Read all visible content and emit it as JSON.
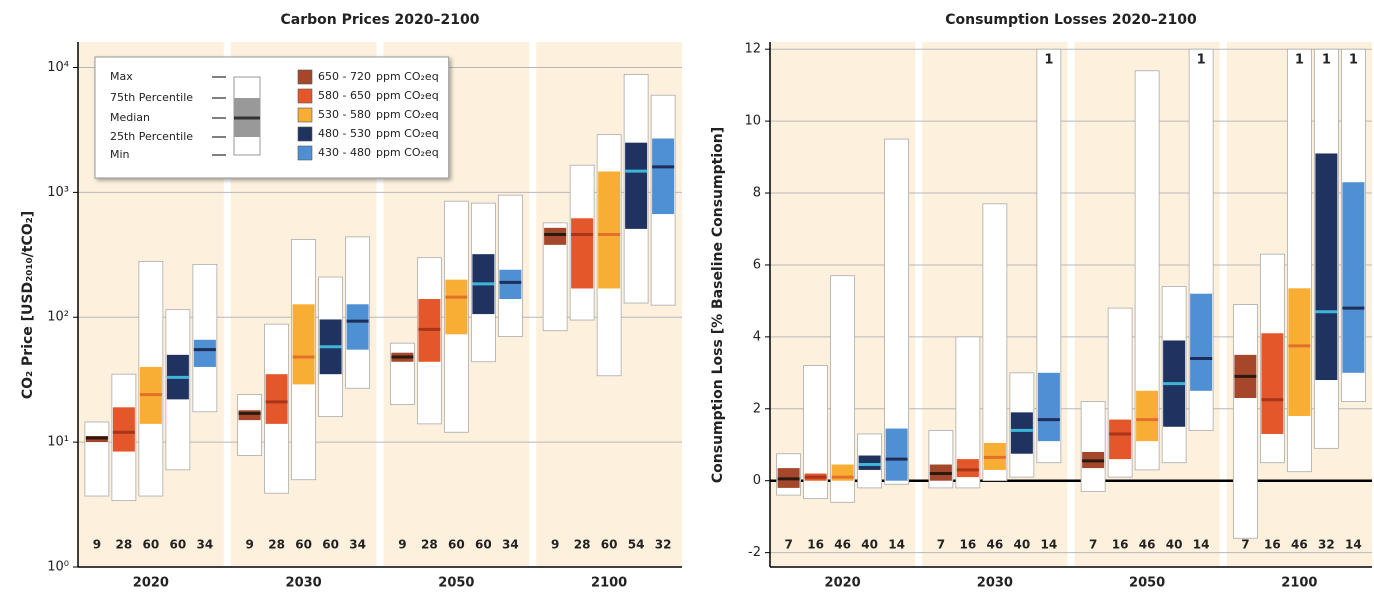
{
  "chart_data": [
    {
      "type": "box",
      "title": "Carbon Prices 2020–2100",
      "y_label": "CO₂ Price [USD₂₀₁₀/tCO₂]",
      "log_scale": true,
      "categories": [
        "2020",
        "2030",
        "2050",
        "2100"
      ],
      "ylim": [
        1,
        16000
      ],
      "yticks": [
        {
          "value": 1,
          "label": "10⁰"
        },
        {
          "value": 10,
          "label": "10¹"
        },
        {
          "value": 100,
          "label": "10²"
        },
        {
          "value": 1000,
          "label": "10³"
        },
        {
          "value": 10000,
          "label": "10⁴"
        }
      ],
      "grid": true,
      "legend_box_labels": [
        "Max",
        "75th Percentile",
        "Median",
        "25th Percentile",
        "Min"
      ],
      "legend_unit": "ppm CO₂eq",
      "series": [
        {
          "name": "650 - 720",
          "color": "#a4472a",
          "median_color": "#2a1a10",
          "min": [
            3.7,
            7.8,
            20,
            78
          ],
          "q1": [
            10,
            15,
            44,
            380
          ],
          "median": [
            10.8,
            17,
            48,
            460
          ],
          "q3": [
            11.2,
            18,
            52,
            520
          ],
          "max": [
            14.5,
            24,
            62,
            570
          ],
          "n": [
            9,
            9,
            9,
            9
          ]
        },
        {
          "name": "580 - 650",
          "color": "#e4572a",
          "median_color": "#a8341a",
          "min": [
            3.4,
            3.9,
            14,
            95
          ],
          "q1": [
            8.4,
            14,
            44,
            170
          ],
          "median": [
            12,
            21,
            80,
            460
          ],
          "q3": [
            19,
            35,
            140,
            620
          ],
          "max": [
            35,
            88,
            300,
            1650
          ],
          "n": [
            28,
            28,
            28,
            28
          ]
        },
        {
          "name": "530 - 580",
          "color": "#f8ae35",
          "median_color": "#e2702a",
          "min": [
            3.7,
            5,
            12,
            34
          ],
          "q1": [
            14,
            29,
            73,
            170
          ],
          "median": [
            24,
            48,
            145,
            460
          ],
          "q3": [
            40,
            127,
            200,
            1470
          ],
          "max": [
            280,
            420,
            850,
            2900
          ],
          "n": [
            60,
            60,
            60,
            60
          ]
        },
        {
          "name": "480 - 530",
          "color": "#1f3260",
          "median_color": "#3fb6d8",
          "min": [
            6,
            16,
            44,
            130
          ],
          "q1": [
            22,
            35,
            106,
            510
          ],
          "median": [
            33,
            58,
            185,
            1480
          ],
          "q3": [
            50,
            96,
            320,
            2500
          ],
          "max": [
            115,
            210,
            820,
            8800
          ],
          "n": [
            60,
            60,
            60,
            54
          ]
        },
        {
          "name": "430 - 480",
          "color": "#4f8fd4",
          "median_color": "#1c2f5a",
          "min": [
            17.5,
            27,
            70,
            125
          ],
          "q1": [
            40,
            55,
            140,
            670
          ],
          "median": [
            55,
            93,
            190,
            1600
          ],
          "q3": [
            66,
            127,
            240,
            2700
          ],
          "max": [
            265,
            440,
            950,
            6000
          ],
          "n": [
            34,
            34,
            34,
            32
          ]
        }
      ]
    },
    {
      "type": "box",
      "title": "Consumption Losses 2020–2100",
      "y_label": "Consumption Loss [% Baseline Consumption]",
      "log_scale": false,
      "categories": [
        "2020",
        "2030",
        "2050",
        "2100"
      ],
      "ylim": [
        -2.4,
        12.2
      ],
      "yticks": [
        -2,
        0,
        2,
        4,
        6,
        8,
        10,
        12
      ],
      "grid": true,
      "series": [
        {
          "color": "#a4472a",
          "median_color": "#2a1a10",
          "min": [
            -0.4,
            -0.2,
            -0.3,
            -1.6
          ],
          "q1": [
            -0.2,
            0,
            0.35,
            2.3
          ],
          "median": [
            0.05,
            0.2,
            0.55,
            2.9
          ],
          "q3": [
            0.35,
            0.45,
            0.8,
            3.5
          ],
          "max": [
            0.75,
            1.4,
            2.2,
            4.9
          ],
          "n": [
            7,
            7,
            7,
            7
          ]
        },
        {
          "color": "#e4572a",
          "median_color": "#a8341a",
          "min": [
            -0.5,
            -0.2,
            0.1,
            0.5
          ],
          "q1": [
            0,
            0.1,
            0.6,
            1.3
          ],
          "median": [
            0.1,
            0.3,
            1.3,
            2.25
          ],
          "q3": [
            0.2,
            0.6,
            1.7,
            4.1
          ],
          "max": [
            3.2,
            4,
            4.8,
            6.3
          ],
          "n": [
            16,
            16,
            16,
            16
          ]
        },
        {
          "color": "#f8ae35",
          "median_color": "#e2702a",
          "min": [
            -0.6,
            0,
            0.3,
            0.25
          ],
          "q1": [
            0,
            0.3,
            1.1,
            1.8
          ],
          "median": [
            0.1,
            0.65,
            1.7,
            3.75
          ],
          "q3": [
            0.45,
            1.05,
            2.5,
            5.35
          ],
          "max": [
            5.7,
            7.7,
            11.4,
            12
          ],
          "n": [
            46,
            46,
            46,
            46
          ],
          "above_labels": [
            null,
            null,
            null,
            "1"
          ]
        },
        {
          "color": "#1f3260",
          "median_color": "#3fb6d8",
          "min": [
            -0.2,
            0.1,
            0.5,
            0.9
          ],
          "q1": [
            0.3,
            0.75,
            1.5,
            2.8
          ],
          "median": [
            0.45,
            1.4,
            2.7,
            4.7
          ],
          "q3": [
            0.7,
            1.9,
            3.9,
            9.1
          ],
          "max": [
            1.3,
            3,
            5.4,
            12
          ],
          "n": [
            40,
            40,
            40,
            32
          ],
          "above_labels": [
            null,
            null,
            null,
            "1"
          ]
        },
        {
          "color": "#4f8fd4",
          "median_color": "#1c2f5a",
          "min": [
            -0.1,
            0.5,
            1.4,
            2.2
          ],
          "q1": [
            0,
            1.1,
            2.5,
            3
          ],
          "median": [
            0.6,
            1.7,
            3.4,
            4.8
          ],
          "q3": [
            1.45,
            3,
            5.2,
            8.3
          ],
          "max": [
            9.5,
            12,
            12,
            12
          ],
          "n": [
            14,
            14,
            14,
            14
          ],
          "above_labels": [
            null,
            "1",
            "1",
            "1"
          ]
        }
      ]
    }
  ]
}
